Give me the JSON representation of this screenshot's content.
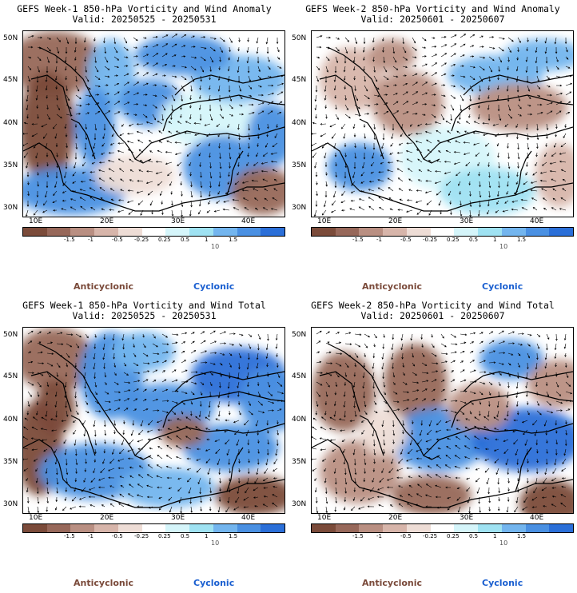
{
  "panels": [
    {
      "title_line1": "GEFS Week-1 850-hPa Vorticity and Wind Anomaly",
      "title_line2": "Valid: 20250525 - 20250531",
      "kind": "anom1"
    },
    {
      "title_line1": "GEFS Week-2 850-hPa Vorticity and Wind Anomaly",
      "title_line2": "Valid: 20250601 - 20250607",
      "kind": "anom2"
    },
    {
      "title_line1": "GEFS Week-1 850-hPa Vorticity and Wind Total",
      "title_line2": "Valid: 20250525 - 20250531",
      "kind": "tot1"
    },
    {
      "title_line1": "GEFS Week-2 850-hPa Vorticity and Wind Total",
      "title_line2": "Valid: 20250601 - 20250607",
      "kind": "tot2"
    }
  ],
  "axes": {
    "lat_labels": [
      "50N",
      "45N",
      "40N",
      "35N",
      "30N"
    ],
    "lon_labels": [
      "10E",
      "20E",
      "30E",
      "40E"
    ]
  },
  "colorbar": {
    "ticks": [
      "-1.5",
      "-1",
      "-0.5",
      "-0.25",
      "0.25",
      "0.5",
      "1",
      "1.5"
    ],
    "unit_label": "10",
    "colors": [
      "#7b4b3a",
      "#97685a",
      "#b98f82",
      "#d7b5aa",
      "#eeddd6",
      "#ffffff",
      "#d5f5fa",
      "#9fe2f2",
      "#73b5ee",
      "#4a90e2",
      "#2b6fd8"
    ]
  },
  "legend": {
    "anticyclonic": "Anticyclonic",
    "cyclonic": "Cyclonic"
  }
}
